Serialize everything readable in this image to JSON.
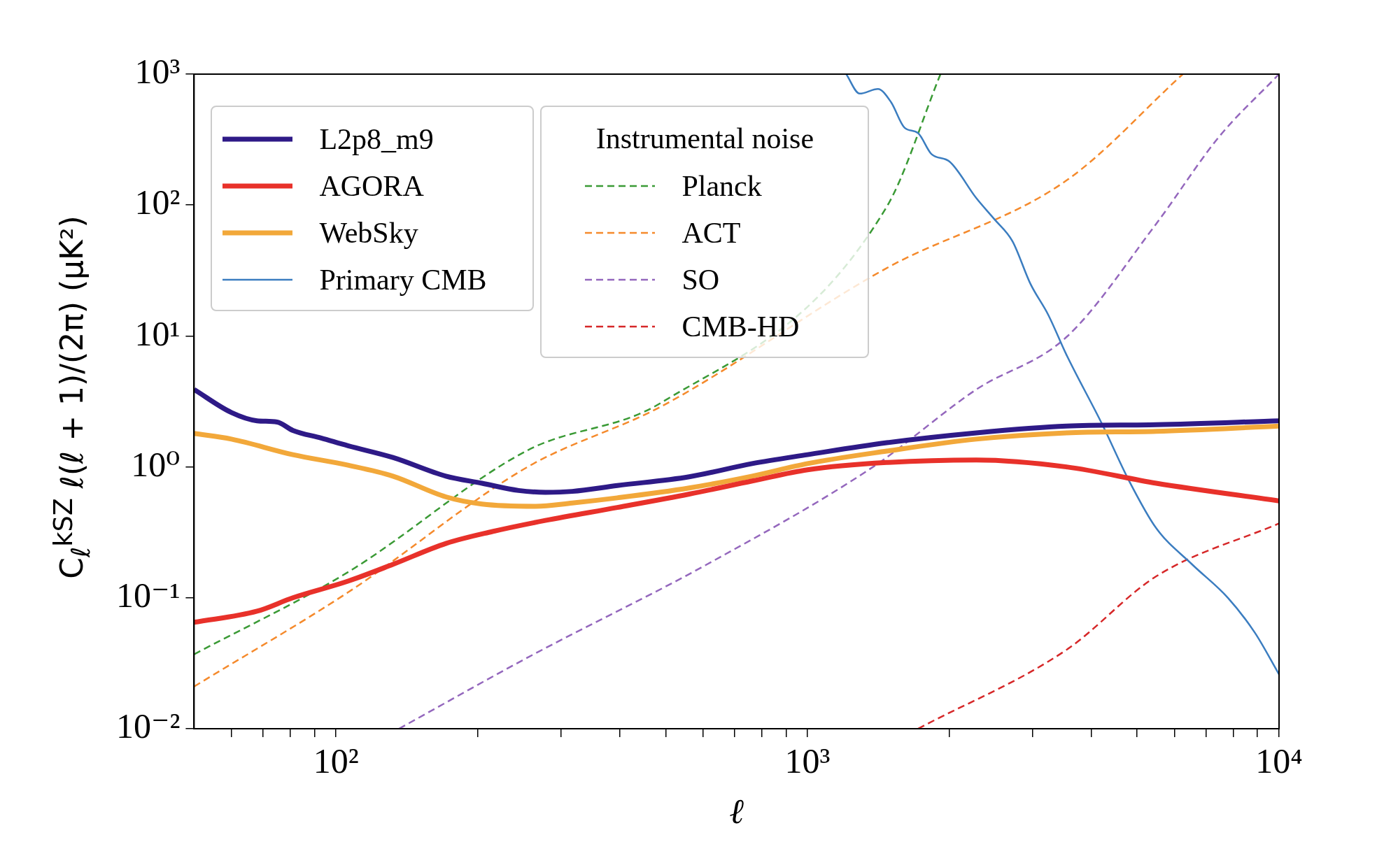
{
  "chart_data": {
    "type": "line",
    "xlabel": "ℓ",
    "ylabel": "C$_{ℓ}$$^{kSZ}$ ℓ(ℓ + 1)/(2π) (μK²)",
    "legend_title": "Instrumental noise",
    "legend": "top left",
    "log": "xy",
    "grid": false,
    "xlim": [
      50,
      10000
    ],
    "ylim": [
      0.01,
      1000
    ],
    "xticks": [
      {
        "value": 60,
        "label": null
      },
      {
        "value": 70,
        "label": null
      },
      {
        "value": 80,
        "label": null
      },
      {
        "value": 90,
        "label": null
      },
      {
        "value": 100,
        "label": "10²"
      },
      {
        "value": 200,
        "label": null
      },
      {
        "value": 300,
        "label": null
      },
      {
        "value": 400,
        "label": null
      },
      {
        "value": 500,
        "label": null
      },
      {
        "value": 600,
        "label": null
      },
      {
        "value": 700,
        "label": null
      },
      {
        "value": 800,
        "label": null
      },
      {
        "value": 900,
        "label": null
      },
      {
        "value": 1000,
        "label": "10³"
      },
      {
        "value": 2000,
        "label": null
      },
      {
        "value": 3000,
        "label": null
      },
      {
        "value": 4000,
        "label": null
      },
      {
        "value": 5000,
        "label": null
      },
      {
        "value": 6000,
        "label": null
      },
      {
        "value": 7000,
        "label": null
      },
      {
        "value": 8000,
        "label": null
      },
      {
        "value": 9000,
        "label": null
      },
      {
        "value": 10000,
        "label": "10⁴"
      }
    ],
    "yticks": [
      {
        "value": 0.01,
        "label": "10⁻²"
      },
      {
        "value": 0.1,
        "label": "10⁻¹"
      },
      {
        "value": 1,
        "label": "10⁰"
      },
      {
        "value": 10,
        "label": "10¹"
      },
      {
        "value": 100,
        "label": "10²"
      },
      {
        "value": 1000,
        "label": "10³"
      }
    ],
    "series": [
      {
        "name": "L2p8_m9",
        "color": "#2e1a87",
        "line_style": "solid",
        "x": [
          50,
          60,
          68,
          75,
          81,
          93,
          106,
          132,
          171,
          204,
          244,
          278,
          317,
          395,
          561,
          763,
          1000,
          1472,
          2280,
          3540,
          5490,
          10000
        ],
        "values": [
          3.9,
          2.6,
          2.25,
          2.2,
          1.9,
          1.66,
          1.45,
          1.18,
          0.85,
          0.75,
          0.66,
          0.64,
          0.65,
          0.72,
          0.84,
          1.06,
          1.24,
          1.53,
          1.82,
          2.05,
          2.1,
          2.25
        ]
      },
      {
        "name": "AGORA",
        "color": "#e8312a",
        "line_style": "solid",
        "x": [
          50,
          68,
          81,
          106,
          132,
          171,
          214,
          278,
          395,
          561,
          763,
          1000,
          1472,
          2280,
          3540,
          5490,
          10000
        ],
        "values": [
          0.065,
          0.079,
          0.1,
          0.134,
          0.18,
          0.26,
          0.32,
          0.39,
          0.49,
          0.62,
          0.78,
          0.95,
          1.08,
          1.13,
          1.0,
          0.75,
          0.55
        ]
      },
      {
        "name": "WebSky",
        "color": "#f2a83a",
        "line_style": "solid",
        "x": [
          50,
          60,
          81,
          106,
          132,
          171,
          204,
          265,
          317,
          395,
          561,
          763,
          1000,
          1472,
          2280,
          3540,
          5490,
          10000
        ],
        "values": [
          1.8,
          1.63,
          1.24,
          1.03,
          0.85,
          0.59,
          0.52,
          0.5,
          0.53,
          0.58,
          0.69,
          0.85,
          1.06,
          1.32,
          1.63,
          1.82,
          1.87,
          2.05
        ]
      },
      {
        "name": "Primary CMB",
        "color": "#3b7dc0",
        "line_style": "solid",
        "x": [
          1208,
          1290,
          1410,
          1504,
          1606,
          1715,
          1832,
          2000,
          2280,
          2490,
          2720,
          2970,
          3240,
          3540,
          4220,
          4810,
          5490,
          6540,
          7790,
          8890,
          10000
        ],
        "values": [
          1000,
          710,
          770,
          610,
          390,
          355,
          245,
          215,
          113,
          78,
          53,
          25,
          14.5,
          7.2,
          2.1,
          0.78,
          0.34,
          0.18,
          0.1,
          0.054,
          0.026
        ]
      },
      {
        "name": "Planck",
        "color": "#3a9a35",
        "line_style": "dashed",
        "x": [
          50,
          106,
          255,
          490,
          1472,
          1914
        ],
        "values": [
          0.037,
          0.157,
          1.34,
          3.1,
          97,
          1000
        ]
      },
      {
        "name": "ACT",
        "color": "#f58a2c",
        "line_style": "dashed",
        "x": [
          50,
          106,
          255,
          490,
          1472,
          3540,
          6250
        ],
        "values": [
          0.021,
          0.11,
          1.0,
          2.9,
          33,
          154,
          1000
        ]
      },
      {
        "name": "SO",
        "color": "#9467bd",
        "line_style": "dashed",
        "x": [
          136,
          255,
          612,
          1377,
          2280,
          3540,
          5490,
          7450,
          10000
        ],
        "values": [
          0.01,
          0.035,
          0.18,
          1.0,
          3.9,
          9.8,
          72,
          330,
          1000
        ]
      },
      {
        "name": "CMB-HD",
        "color": "#d62728",
        "line_style": "dashed",
        "x": [
          1715,
          3540,
          5490,
          10000
        ],
        "values": [
          0.01,
          0.04,
          0.146,
          0.37
        ]
      }
    ]
  }
}
